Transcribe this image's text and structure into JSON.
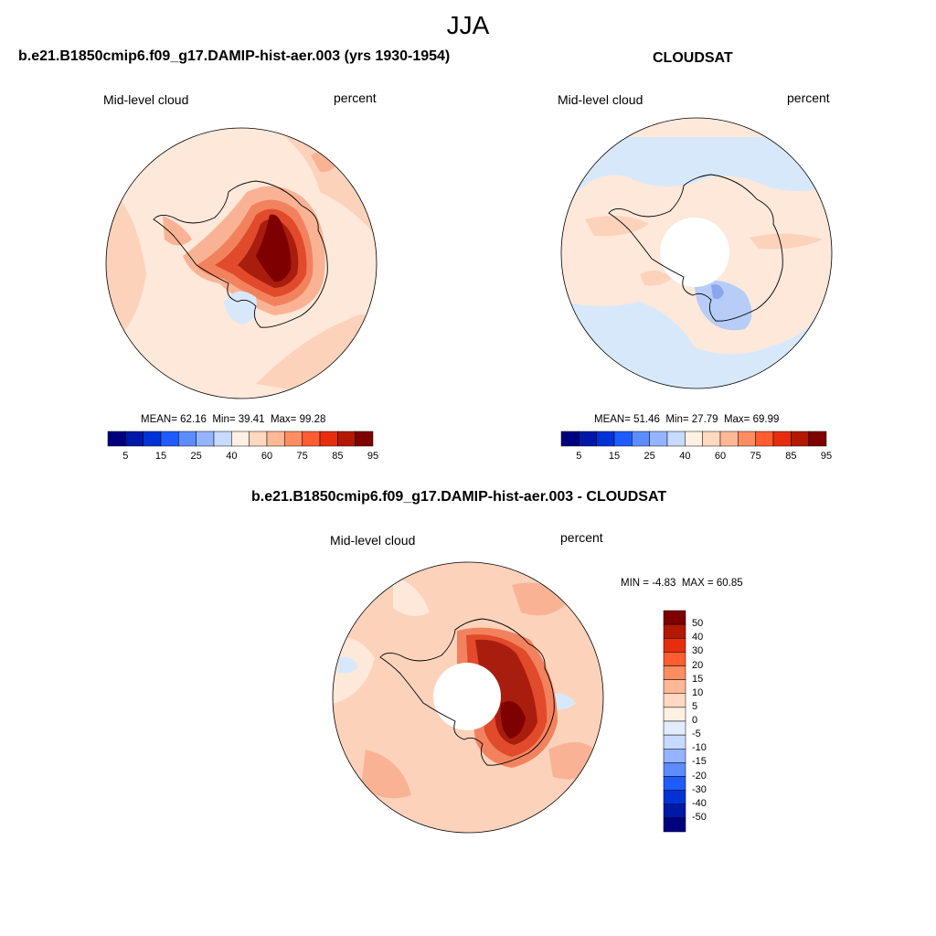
{
  "header": {
    "title": "JJA"
  },
  "panels": {
    "model": {
      "title": "b.e21.B1850cmip6.f09_g17.DAMIP-hist-aer.003 (yrs 1930-1954)",
      "left_label": "Mid-level cloud",
      "right_label": "percent",
      "stats": {
        "mean_label": "MEAN=",
        "mean": "62.16",
        "min_label": "Min=",
        "min": "39.41",
        "max_label": "Max=",
        "max": "99.28"
      }
    },
    "obs": {
      "title": "CLOUDSAT",
      "left_label": "Mid-level cloud",
      "right_label": "percent",
      "stats": {
        "mean_label": "MEAN=",
        "mean": "51.46",
        "min_label": "Min=",
        "min": "27.79",
        "max_label": "Max=",
        "max": "69.99"
      }
    },
    "diff": {
      "title": "b.e21.B1850cmip6.f09_g17.DAMIP-hist-aer.003 - CLOUDSAT",
      "left_label": "Mid-level cloud",
      "right_label": "percent",
      "stats": {
        "min_label": "MIN =",
        "min": "-4.83",
        "max_label": "MAX =",
        "max": "60.85"
      }
    }
  },
  "colorbars": {
    "abs": {
      "colors": [
        "#00007f",
        "#0018a8",
        "#0033d6",
        "#1f5cff",
        "#5c8cff",
        "#95b4ff",
        "#c7daff",
        "#fff0e4",
        "#ffd8c0",
        "#ffb896",
        "#ff8d62",
        "#ff5c30",
        "#e62e0f",
        "#b31800",
        "#7f0000"
      ],
      "tick_labels": [
        "5",
        "15",
        "25",
        "40",
        "60",
        "75",
        "85",
        "95"
      ]
    },
    "diff": {
      "colors": [
        "#7f0000",
        "#b31800",
        "#e62e0f",
        "#ff5c30",
        "#ff8d62",
        "#ffb896",
        "#ffd8c0",
        "#fff0e4",
        "#e2ecff",
        "#c7daff",
        "#95b4ff",
        "#5c8cff",
        "#1f5cff",
        "#0033d6",
        "#0018a8",
        "#00007f"
      ],
      "tick_labels": [
        "50",
        "40",
        "30",
        "20",
        "15",
        "10",
        "5",
        "0",
        "-5",
        "-10",
        "-15",
        "-20",
        "-30",
        "-40",
        "-50"
      ]
    }
  },
  "map_colors": {
    "ocean_light": "#fde8da",
    "ocean_mid": "#fcd2bb",
    "ocean_blue": "#d8e8fb",
    "blue_mid": "#b7cdf7",
    "blue_dark": "#8aa6ee",
    "red_1": "#f9b394",
    "red_2": "#f2825e",
    "red_3": "#e14a2a",
    "red_4": "#a91d0e",
    "red_5": "#7f0000"
  }
}
